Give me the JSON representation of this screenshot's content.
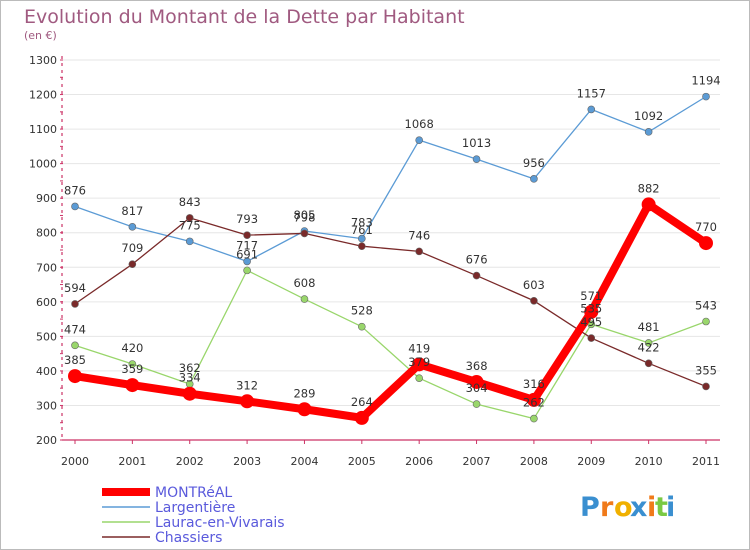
{
  "header": {
    "title": "Evolution du Montant de la Dette par Habitant",
    "subtitle": "(en €)"
  },
  "logo": {
    "letters": [
      "P",
      "r",
      "o",
      "x",
      "i",
      "t",
      "i"
    ],
    "colors": [
      "#3a8fd0",
      "#f07a1a",
      "#f0b000",
      "#3a8fd0",
      "#f07a1a",
      "#7ac943",
      "#3a8fd0"
    ]
  },
  "colors": {
    "axis": "#cc3366",
    "grid": "#e6e6e6",
    "border": "#bbbbbb"
  },
  "chart_data": {
    "type": "line",
    "title": "Evolution du Montant de la Dette par Habitant",
    "subtitle": "(en €)",
    "xlabel": "",
    "ylabel": "",
    "ylim": [
      200,
      1300
    ],
    "yticks": [
      200,
      300,
      400,
      500,
      600,
      700,
      800,
      900,
      1000,
      1100,
      1200,
      1300
    ],
    "grid": true,
    "legend_position": "bottom-left",
    "categories": [
      "2000",
      "2001",
      "2002",
      "2003",
      "2004",
      "2005",
      "2006",
      "2007",
      "2008",
      "2009",
      "2010",
      "2011"
    ],
    "series": [
      {
        "name": "MONTRéAL",
        "color": "#ff0000",
        "emphasis": true,
        "values": [
          385,
          359,
          334,
          312,
          289,
          264,
          419,
          368,
          316,
          571,
          882,
          770
        ],
        "labels": [
          "385",
          "359",
          "334",
          "312",
          "289",
          "264",
          "419",
          "368",
          "316",
          "571",
          "882",
          "770"
        ]
      },
      {
        "name": "Largentière",
        "color": "#5b9bd5",
        "emphasis": false,
        "values": [
          876,
          817,
          775,
          717,
          805,
          783,
          1068,
          1013,
          956,
          1157,
          1092,
          1194
        ],
        "labels": [
          "876",
          "817",
          "775",
          "717",
          "805",
          "783",
          "1068",
          "1013",
          "956",
          "1157",
          "1092",
          "1194"
        ]
      },
      {
        "name": "Laurac-en-Vivarais",
        "color": "#99d66b",
        "emphasis": false,
        "values": [
          474,
          420,
          362,
          691,
          608,
          528,
          379,
          304,
          262,
          535,
          481,
          543
        ],
        "labels": [
          "474",
          "420",
          "362",
          "691",
          "608",
          "528",
          "379",
          "304",
          "262",
          "535",
          "481",
          "543"
        ]
      },
      {
        "name": "Chassiers",
        "color": "#7a2a2a",
        "emphasis": false,
        "values": [
          594,
          709,
          843,
          793,
          798,
          761,
          746,
          676,
          603,
          495,
          422,
          355
        ],
        "labels": [
          "594",
          "709",
          "843",
          "793",
          "798",
          "761",
          "746",
          "676",
          "603",
          "495",
          "422",
          "355"
        ]
      }
    ]
  }
}
